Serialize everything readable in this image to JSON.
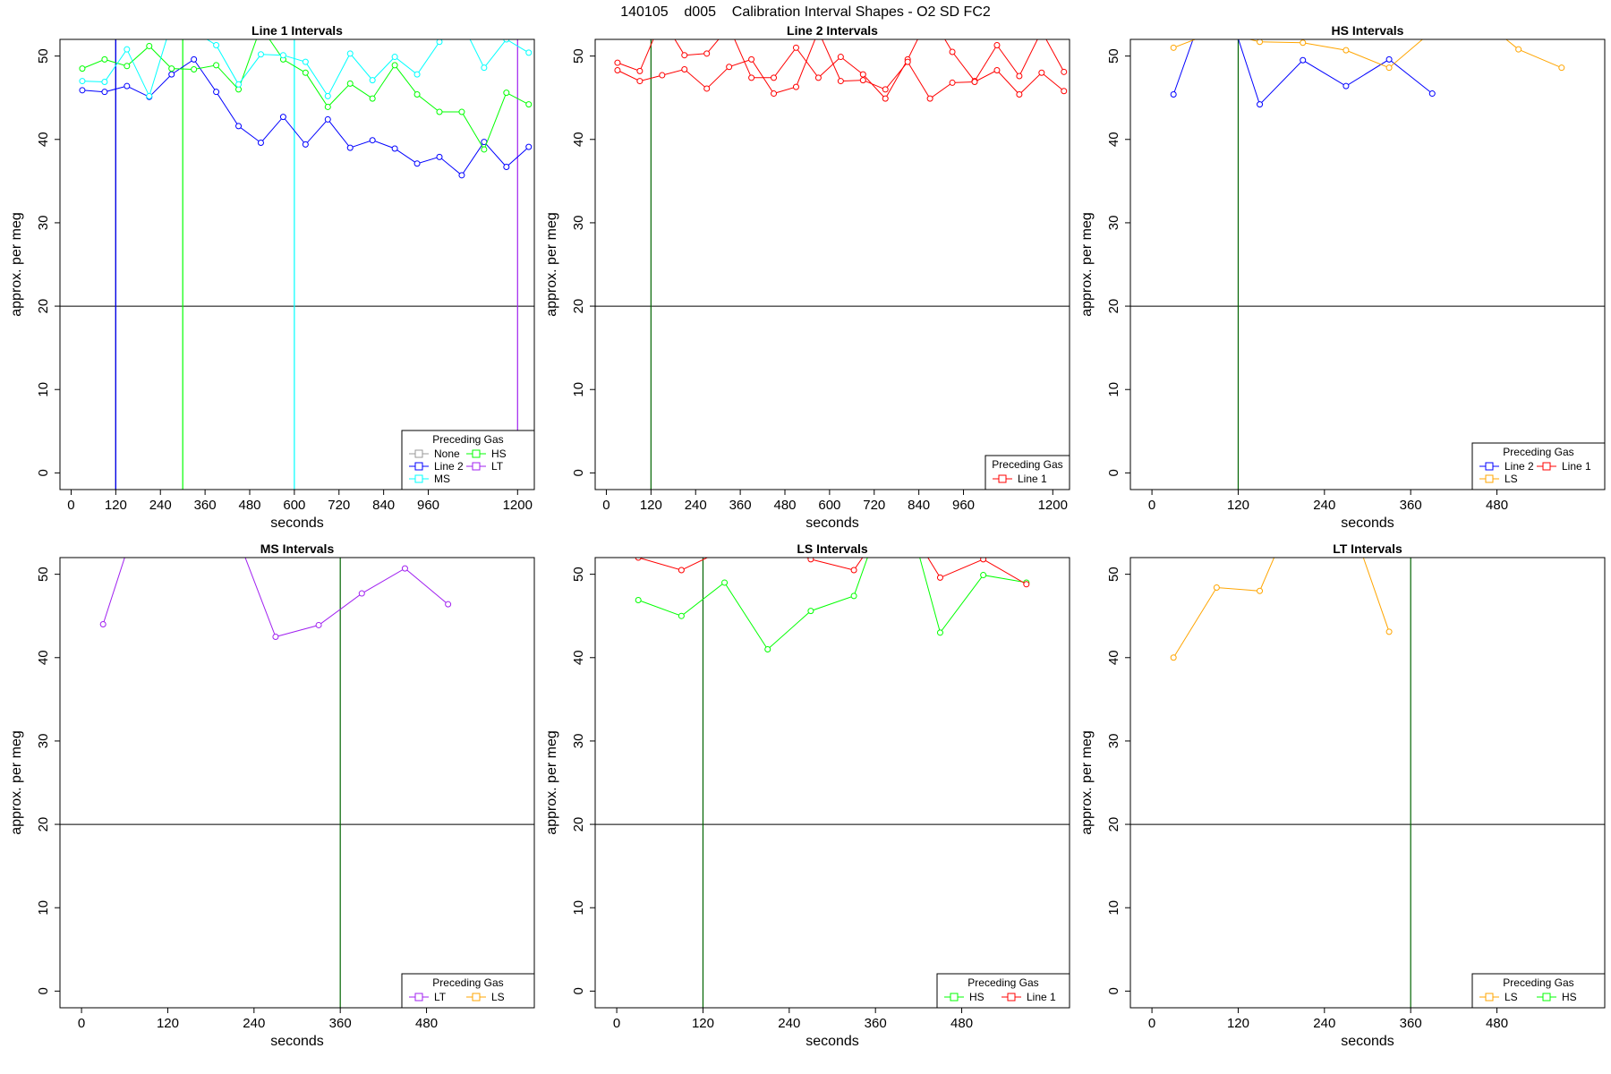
{
  "figure_title": "140105    d005    Calibration Interval Shapes - O2 SD FC2",
  "chart_data": [
    {
      "type": "line",
      "title": "Line 1 Intervals",
      "xlabel": "seconds",
      "ylabel": "approx. per meg",
      "xlim": [
        -30,
        1245
      ],
      "ylim": [
        -2,
        52
      ],
      "xticks": [
        0,
        120,
        240,
        360,
        480,
        600,
        720,
        840,
        960,
        1200
      ],
      "yticks": [
        0,
        10,
        20,
        30,
        40,
        50
      ],
      "hlines": [
        {
          "y": 20,
          "color": "#000000"
        }
      ],
      "vlines": [
        {
          "x": 120,
          "color": "#000000"
        },
        {
          "x": 120,
          "color": "#0000ff"
        },
        {
          "x": 300,
          "color": "#00ff00"
        },
        {
          "x": 600,
          "color": "#00ffff"
        },
        {
          "x": 1200,
          "color": "#a020f0"
        }
      ],
      "legend": {
        "title": "Preceding Gas",
        "position": "bottom-right",
        "columns": 2,
        "entries": [
          {
            "name": "None",
            "color": "#999999"
          },
          {
            "name": "HS",
            "color": "#00ff00"
          },
          {
            "name": "Line 2",
            "color": "#0000ff"
          },
          {
            "name": "LT",
            "color": "#a020f0"
          },
          {
            "name": "MS",
            "color": "#00ffff"
          }
        ]
      },
      "series": [
        {
          "name": "Line 2",
          "color": "#0000ff",
          "x": [
            30,
            90,
            150,
            210,
            270,
            330,
            390,
            450,
            510,
            570,
            630,
            690,
            750,
            810,
            870,
            930,
            990,
            1050,
            1110,
            1170,
            1230
          ],
          "y": [
            45.9,
            45.7,
            46.4,
            45.1,
            47.8,
            49.6,
            45.7,
            41.6,
            39.6,
            42.7,
            39.4,
            42.4,
            39.0,
            39.9,
            38.9,
            37.1,
            37.9,
            35.7,
            39.7,
            36.7,
            39.1
          ]
        },
        {
          "name": "HS",
          "color": "#00ff00",
          "x": [
            30,
            90,
            150,
            210,
            270,
            330,
            390,
            450,
            510,
            570,
            630,
            690,
            750,
            810,
            870,
            930,
            990,
            1050,
            1110,
            1170,
            1230
          ],
          "y": [
            48.5,
            49.6,
            48.8,
            51.2,
            48.5,
            48.4,
            48.9,
            46.0,
            53.5,
            49.6,
            48.0,
            43.9,
            46.7,
            44.9,
            48.9,
            45.4,
            43.3,
            43.3,
            38.8,
            45.6,
            44.2
          ]
        },
        {
          "name": "MS",
          "color": "#00ffff",
          "x": [
            30,
            90,
            150,
            210,
            270,
            330,
            390,
            450,
            510,
            570,
            630,
            690,
            750,
            810,
            870,
            930,
            990,
            1050,
            1110,
            1170,
            1230
          ],
          "y": [
            47.0,
            46.9,
            50.8,
            45.2,
            54.0,
            53.0,
            51.3,
            46.6,
            50.2,
            50.1,
            49.3,
            45.2,
            50.3,
            47.1,
            49.9,
            47.8,
            51.7,
            54.0,
            48.6,
            52.0,
            50.4
          ]
        }
      ]
    },
    {
      "type": "line",
      "title": "Line 2 Intervals",
      "xlabel": "seconds",
      "ylabel": "approx. per meg",
      "xlim": [
        -30,
        1245
      ],
      "ylim": [
        -2,
        52
      ],
      "xticks": [
        0,
        120,
        240,
        360,
        480,
        600,
        720,
        840,
        960,
        1200
      ],
      "yticks": [
        0,
        10,
        20,
        30,
        40,
        50
      ],
      "hlines": [
        {
          "y": 20,
          "color": "#000000"
        }
      ],
      "vlines": [
        {
          "x": 120,
          "color": "#006400"
        }
      ],
      "legend": {
        "title": "Preceding Gas",
        "position": "bottom-right",
        "columns": 1,
        "entries": [
          {
            "name": "Line 1",
            "color": "#ff0000"
          }
        ]
      },
      "series": [
        {
          "name": "Line 1",
          "color": "#ff0000",
          "x": [
            30,
            90,
            150,
            210,
            270,
            330,
            390,
            450,
            510,
            570,
            630,
            690,
            750,
            810,
            870,
            930,
            990,
            1050,
            1110,
            1170,
            1230
          ],
          "y": [
            49.2,
            48.2,
            54.5,
            50.1,
            50.3,
            53.5,
            47.4,
            47.4,
            51.0,
            47.4,
            49.9,
            47.8,
            44.9,
            49.6,
            55.0,
            50.5,
            47.0,
            51.3,
            47.6,
            53.0,
            48.1
          ]
        },
        {
          "name": "Line 1",
          "color": "#ff0000",
          "x": [
            30,
            90,
            150,
            210,
            270,
            330,
            390,
            450,
            510,
            570,
            630,
            690,
            750,
            810,
            870,
            930,
            990,
            1050,
            1110,
            1170,
            1230
          ],
          "y": [
            48.3,
            47.0,
            47.7,
            48.4,
            46.1,
            48.7,
            49.6,
            45.5,
            46.3,
            53.0,
            47.0,
            47.1,
            46.0,
            49.3,
            44.9,
            46.8,
            46.9,
            48.3,
            45.4,
            48.0,
            45.8
          ]
        }
      ]
    },
    {
      "type": "line",
      "title": "HS Intervals",
      "xlabel": "seconds",
      "ylabel": "approx. per meg",
      "xlim": [
        -30,
        630
      ],
      "ylim": [
        -2,
        52
      ],
      "xticks": [
        0,
        120,
        240,
        360,
        480
      ],
      "yticks": [
        0,
        10,
        20,
        30,
        40,
        50
      ],
      "hlines": [
        {
          "y": 20,
          "color": "#000000"
        }
      ],
      "vlines": [
        {
          "x": 120,
          "color": "#006400"
        }
      ],
      "legend": {
        "title": "Preceding Gas",
        "position": "bottom-right",
        "columns": 2,
        "entries": [
          {
            "name": "Line 2",
            "color": "#0000ff"
          },
          {
            "name": "Line 1",
            "color": "#ff0000"
          },
          {
            "name": "LS",
            "color": "#ffa500"
          }
        ]
      },
      "series": [
        {
          "name": "Line 2",
          "color": "#0000ff",
          "x": [
            30,
            90,
            150,
            210,
            270,
            330,
            390
          ],
          "y": [
            45.4,
            60.0,
            44.2,
            49.5,
            46.4,
            49.6,
            45.5
          ]
        },
        {
          "name": "LS",
          "color": "#ffa500",
          "x": [
            30,
            90,
            150,
            210,
            270,
            330,
            390,
            450,
            510,
            570
          ],
          "y": [
            51.0,
            53.0,
            51.7,
            51.6,
            50.7,
            48.6,
            53.0,
            55.0,
            50.8,
            48.6
          ]
        }
      ]
    },
    {
      "type": "line",
      "title": "MS Intervals",
      "xlabel": "seconds",
      "ylabel": "approx. per meg",
      "xlim": [
        -30,
        630
      ],
      "ylim": [
        -2,
        52
      ],
      "xticks": [
        0,
        120,
        240,
        360,
        480
      ],
      "yticks": [
        0,
        10,
        20,
        30,
        40,
        50
      ],
      "hlines": [
        {
          "y": 20,
          "color": "#000000"
        }
      ],
      "vlines": [
        {
          "x": 360,
          "color": "#006400"
        }
      ],
      "legend": {
        "title": "Preceding Gas",
        "position": "bottom-right",
        "columns": 2,
        "entries": [
          {
            "name": "LT",
            "color": "#a020f0"
          },
          {
            "name": "LS",
            "color": "#ffa500"
          }
        ]
      },
      "series": [
        {
          "name": "LT",
          "color": "#a020f0",
          "x": [
            30,
            90,
            150,
            210,
            270,
            330,
            390,
            450,
            510
          ],
          "y": [
            44.0,
            60.0,
            62.0,
            56.0,
            42.5,
            43.9,
            47.7,
            50.7,
            46.4
          ]
        }
      ]
    },
    {
      "type": "line",
      "title": "LS Intervals",
      "xlabel": "seconds",
      "ylabel": "approx. per meg",
      "xlim": [
        -30,
        630
      ],
      "ylim": [
        -2,
        52
      ],
      "xticks": [
        0,
        120,
        240,
        360,
        480
      ],
      "yticks": [
        0,
        10,
        20,
        30,
        40,
        50
      ],
      "hlines": [
        {
          "y": 20,
          "color": "#000000"
        }
      ],
      "vlines": [
        {
          "x": 120,
          "color": "#006400"
        }
      ],
      "legend": {
        "title": "Preceding Gas",
        "position": "bottom-right",
        "columns": 2,
        "entries": [
          {
            "name": "HS",
            "color": "#00ff00"
          },
          {
            "name": "Line 1",
            "color": "#ff0000"
          }
        ]
      },
      "series": [
        {
          "name": "HS",
          "color": "#00ff00",
          "x": [
            30,
            90,
            150,
            210,
            270,
            330,
            390,
            450,
            510,
            570
          ],
          "y": [
            46.9,
            45.0,
            49.0,
            41.0,
            45.6,
            47.4,
            62.0,
            43.0,
            49.9,
            49.0
          ]
        },
        {
          "name": "Line 1",
          "color": "#ff0000",
          "x": [
            30,
            90,
            150,
            210,
            270,
            330,
            390,
            450,
            510,
            570
          ],
          "y": [
            52.0,
            50.5,
            53.0,
            54.0,
            51.8,
            50.5,
            58.0,
            49.6,
            51.8,
            48.8
          ]
        }
      ]
    },
    {
      "type": "line",
      "title": "LT Intervals",
      "xlabel": "seconds",
      "ylabel": "approx. per meg",
      "xlim": [
        -30,
        630
      ],
      "ylim": [
        -2,
        52
      ],
      "xticks": [
        0,
        120,
        240,
        360,
        480
      ],
      "yticks": [
        0,
        10,
        20,
        30,
        40,
        50
      ],
      "hlines": [
        {
          "y": 20,
          "color": "#000000"
        }
      ],
      "vlines": [
        {
          "x": 360,
          "color": "#006400"
        }
      ],
      "legend": {
        "title": "Preceding Gas",
        "position": "bottom-right",
        "columns": 2,
        "entries": [
          {
            "name": "LS",
            "color": "#ffa500"
          },
          {
            "name": "HS",
            "color": "#00ff00"
          }
        ]
      },
      "series": [
        {
          "name": "LS",
          "color": "#ffa500",
          "x": [
            30,
            90,
            150,
            210,
            270,
            330
          ],
          "y": [
            40.0,
            48.4,
            48.0,
            60.0,
            58.0,
            43.1
          ]
        }
      ]
    }
  ]
}
